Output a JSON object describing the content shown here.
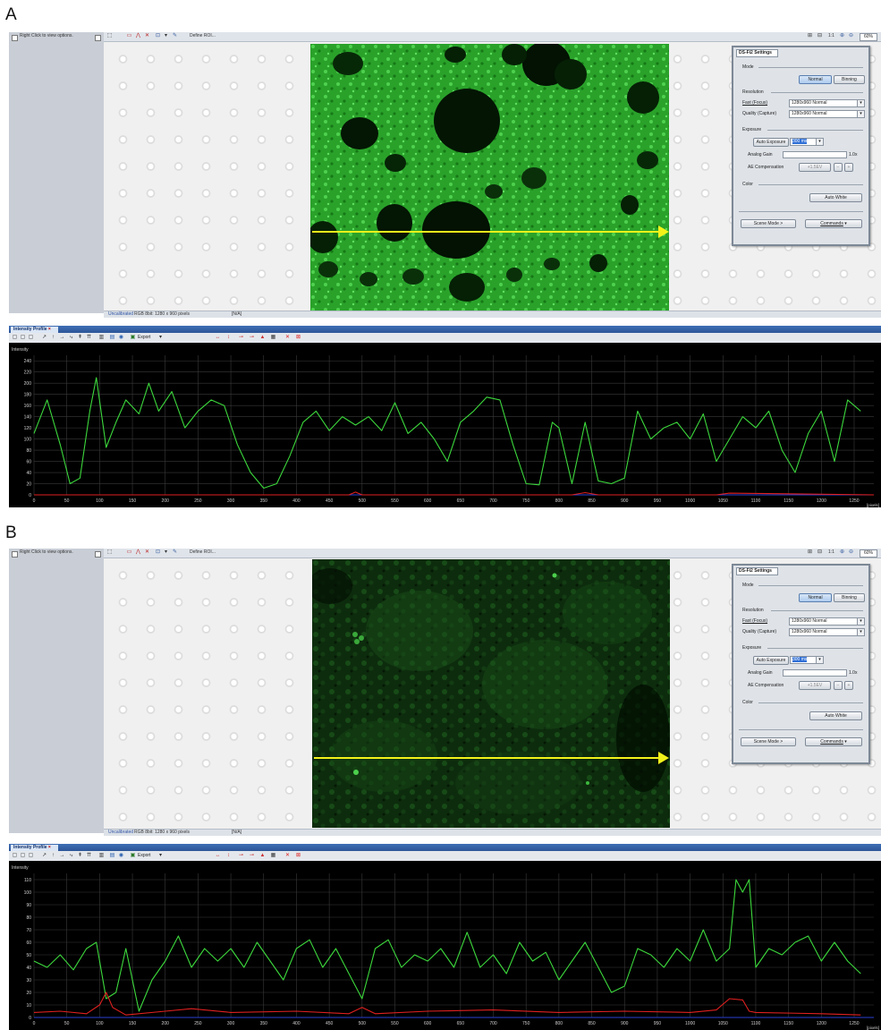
{
  "panels": [
    {
      "letter": "A",
      "left_hint": "Right Click to view options.",
      "toolbar_define": "Define ROI...",
      "zoom": {
        "ratio": "1:1",
        "percent": "60%"
      },
      "status": {
        "calibration": "Uncalibrated",
        "info": "RGB 8bit: 1280 x 960 pixels",
        "na": "[N/A]"
      },
      "settings": {
        "title": "DS-Fi2 Settings",
        "mode_label": "Mode",
        "mode_normal": "Normal",
        "mode_binning": "Binning",
        "resolution_label": "Resolution",
        "fast_label": "Fast (Focus)",
        "fast_value": "1280x960 Normal",
        "quality_label": "Quality (Capture)",
        "quality_value": "1280x960 Normal",
        "exposure_label": "Exposure",
        "auto_exposure": "Auto Exposure",
        "exposure_value": "300 ms",
        "analog_gain_label": "Analog Gain",
        "analog_gain_value": "1.0x",
        "ae_comp_label": "AE Compensation",
        "ae_comp_value": "+1.5EV",
        "color_label": "Color",
        "auto_white": "Auto White",
        "scene_mode": "Scene Mode >",
        "commands": "Commands"
      },
      "profile": {
        "tab": "Intensity Profile",
        "export": "Export",
        "chart_title": "Intensity",
        "x_unit": "[pixels]"
      }
    },
    {
      "letter": "B",
      "left_hint": "Right Click to view options.",
      "toolbar_define": "Define ROI...",
      "zoom": {
        "ratio": "1:1",
        "percent": "60%"
      },
      "status": {
        "calibration": "Uncalibrated",
        "info": "RGB 8bit: 1280 x 960 pixels",
        "na": "[N/A]"
      },
      "settings": {
        "title": "DS-Fi2 Settings",
        "mode_label": "Mode",
        "mode_normal": "Normal",
        "mode_binning": "Binning",
        "resolution_label": "Resolution",
        "fast_label": "Fast (Focus)",
        "fast_value": "1280x960 Normal",
        "quality_label": "Quality (Capture)",
        "quality_value": "1280x960 Normal",
        "exposure_label": "Exposure",
        "auto_exposure": "Auto Exposure",
        "exposure_value": "300 ms",
        "analog_gain_label": "Analog Gain",
        "analog_gain_value": "1.0x",
        "ae_comp_label": "AE Compensation",
        "ae_comp_value": "+1.5EV",
        "color_label": "Color",
        "auto_white": "Auto White",
        "scene_mode": "Scene Mode >",
        "commands": "Commands"
      },
      "profile": {
        "tab": "Intensity Profile",
        "export": "Export",
        "chart_title": "Intensity",
        "x_unit": "[pixels]"
      }
    }
  ],
  "chart_data": [
    {
      "type": "line",
      "title": "Intensity",
      "xlabel": "[pixels]",
      "ylabel": "Intensity",
      "xlim": [
        0,
        1280
      ],
      "ylim": [
        0,
        250
      ],
      "x_ticks": [
        0,
        50,
        100,
        150,
        200,
        250,
        300,
        350,
        400,
        450,
        500,
        550,
        600,
        650,
        700,
        750,
        800,
        850,
        900,
        950,
        1000,
        1050,
        1100,
        1150,
        1200,
        1250
      ],
      "y_ticks": [
        0,
        20,
        40,
        60,
        80,
        100,
        120,
        140,
        160,
        180,
        200,
        220,
        240
      ],
      "grid": true,
      "series": [
        {
          "color": "#3cd83c",
          "x": [
            0,
            20,
            40,
            55,
            70,
            85,
            95,
            110,
            125,
            140,
            160,
            175,
            190,
            210,
            230,
            250,
            270,
            290,
            310,
            330,
            350,
            370,
            390,
            410,
            430,
            450,
            470,
            490,
            510,
            530,
            550,
            570,
            590,
            610,
            630,
            650,
            670,
            690,
            710,
            730,
            750,
            770,
            790,
            800,
            820,
            840,
            860,
            880,
            900,
            920,
            940,
            960,
            980,
            1000,
            1020,
            1040,
            1060,
            1080,
            1100,
            1120,
            1140,
            1160,
            1180,
            1200,
            1220,
            1240,
            1260
          ],
          "y": [
            110,
            170,
            90,
            20,
            30,
            150,
            210,
            85,
            130,
            170,
            145,
            200,
            150,
            185,
            120,
            150,
            170,
            160,
            90,
            40,
            12,
            20,
            70,
            130,
            150,
            115,
            140,
            125,
            140,
            115,
            165,
            110,
            130,
            100,
            60,
            130,
            150,
            175,
            170,
            90,
            20,
            18,
            130,
            120,
            20,
            130,
            25,
            20,
            30,
            150,
            100,
            120,
            130,
            100,
            145,
            60,
            100,
            140,
            120,
            150,
            80,
            40,
            110,
            150,
            60,
            170,
            150
          ]
        },
        {
          "color": "#e02020",
          "x": [
            0,
            480,
            490,
            500,
            820,
            840,
            860,
            1040,
            1060,
            1280
          ],
          "y": [
            0,
            0,
            5,
            0,
            0,
            4,
            0,
            0,
            3,
            0
          ]
        }
      ]
    },
    {
      "type": "line",
      "title": "Intensity",
      "xlabel": "[pixels]",
      "ylabel": "Intensity",
      "xlim": [
        0,
        1280
      ],
      "ylim": [
        0,
        115
      ],
      "x_ticks": [
        0,
        50,
        100,
        150,
        200,
        250,
        300,
        350,
        400,
        450,
        500,
        550,
        600,
        650,
        700,
        750,
        800,
        850,
        900,
        950,
        1000,
        1050,
        1100,
        1150,
        1200,
        1250
      ],
      "y_ticks": [
        0,
        10,
        20,
        30,
        40,
        50,
        60,
        70,
        80,
        90,
        100,
        110
      ],
      "grid": true,
      "series": [
        {
          "color": "#3cd83c",
          "x": [
            0,
            20,
            40,
            60,
            80,
            95,
            110,
            125,
            140,
            160,
            180,
            200,
            220,
            240,
            260,
            280,
            300,
            320,
            340,
            360,
            380,
            400,
            420,
            440,
            460,
            480,
            500,
            520,
            540,
            560,
            580,
            600,
            620,
            640,
            660,
            680,
            700,
            720,
            740,
            760,
            780,
            800,
            820,
            840,
            860,
            880,
            900,
            920,
            940,
            960,
            980,
            1000,
            1020,
            1040,
            1060,
            1070,
            1080,
            1090,
            1100,
            1120,
            1140,
            1160,
            1180,
            1200,
            1220,
            1240,
            1260
          ],
          "y": [
            45,
            40,
            50,
            38,
            55,
            60,
            15,
            20,
            55,
            5,
            30,
            45,
            65,
            40,
            55,
            45,
            55,
            40,
            60,
            45,
            30,
            55,
            62,
            40,
            55,
            35,
            15,
            55,
            62,
            40,
            50,
            45,
            55,
            40,
            68,
            40,
            50,
            35,
            60,
            45,
            52,
            30,
            45,
            60,
            40,
            20,
            25,
            55,
            50,
            40,
            55,
            45,
            70,
            45,
            55,
            110,
            100,
            110,
            40,
            55,
            50,
            60,
            65,
            45,
            60,
            45,
            35
          ]
        },
        {
          "color": "#e02020",
          "x": [
            0,
            40,
            80,
            100,
            110,
            120,
            140,
            200,
            240,
            300,
            400,
            480,
            500,
            520,
            600,
            700,
            800,
            900,
            1000,
            1040,
            1060,
            1080,
            1090,
            1100,
            1200,
            1260
          ],
          "y": [
            4,
            5,
            3,
            10,
            20,
            8,
            2,
            5,
            7,
            4,
            5,
            3,
            8,
            3,
            5,
            6,
            4,
            5,
            4,
            6,
            15,
            14,
            5,
            4,
            3,
            2
          ]
        }
      ]
    }
  ]
}
